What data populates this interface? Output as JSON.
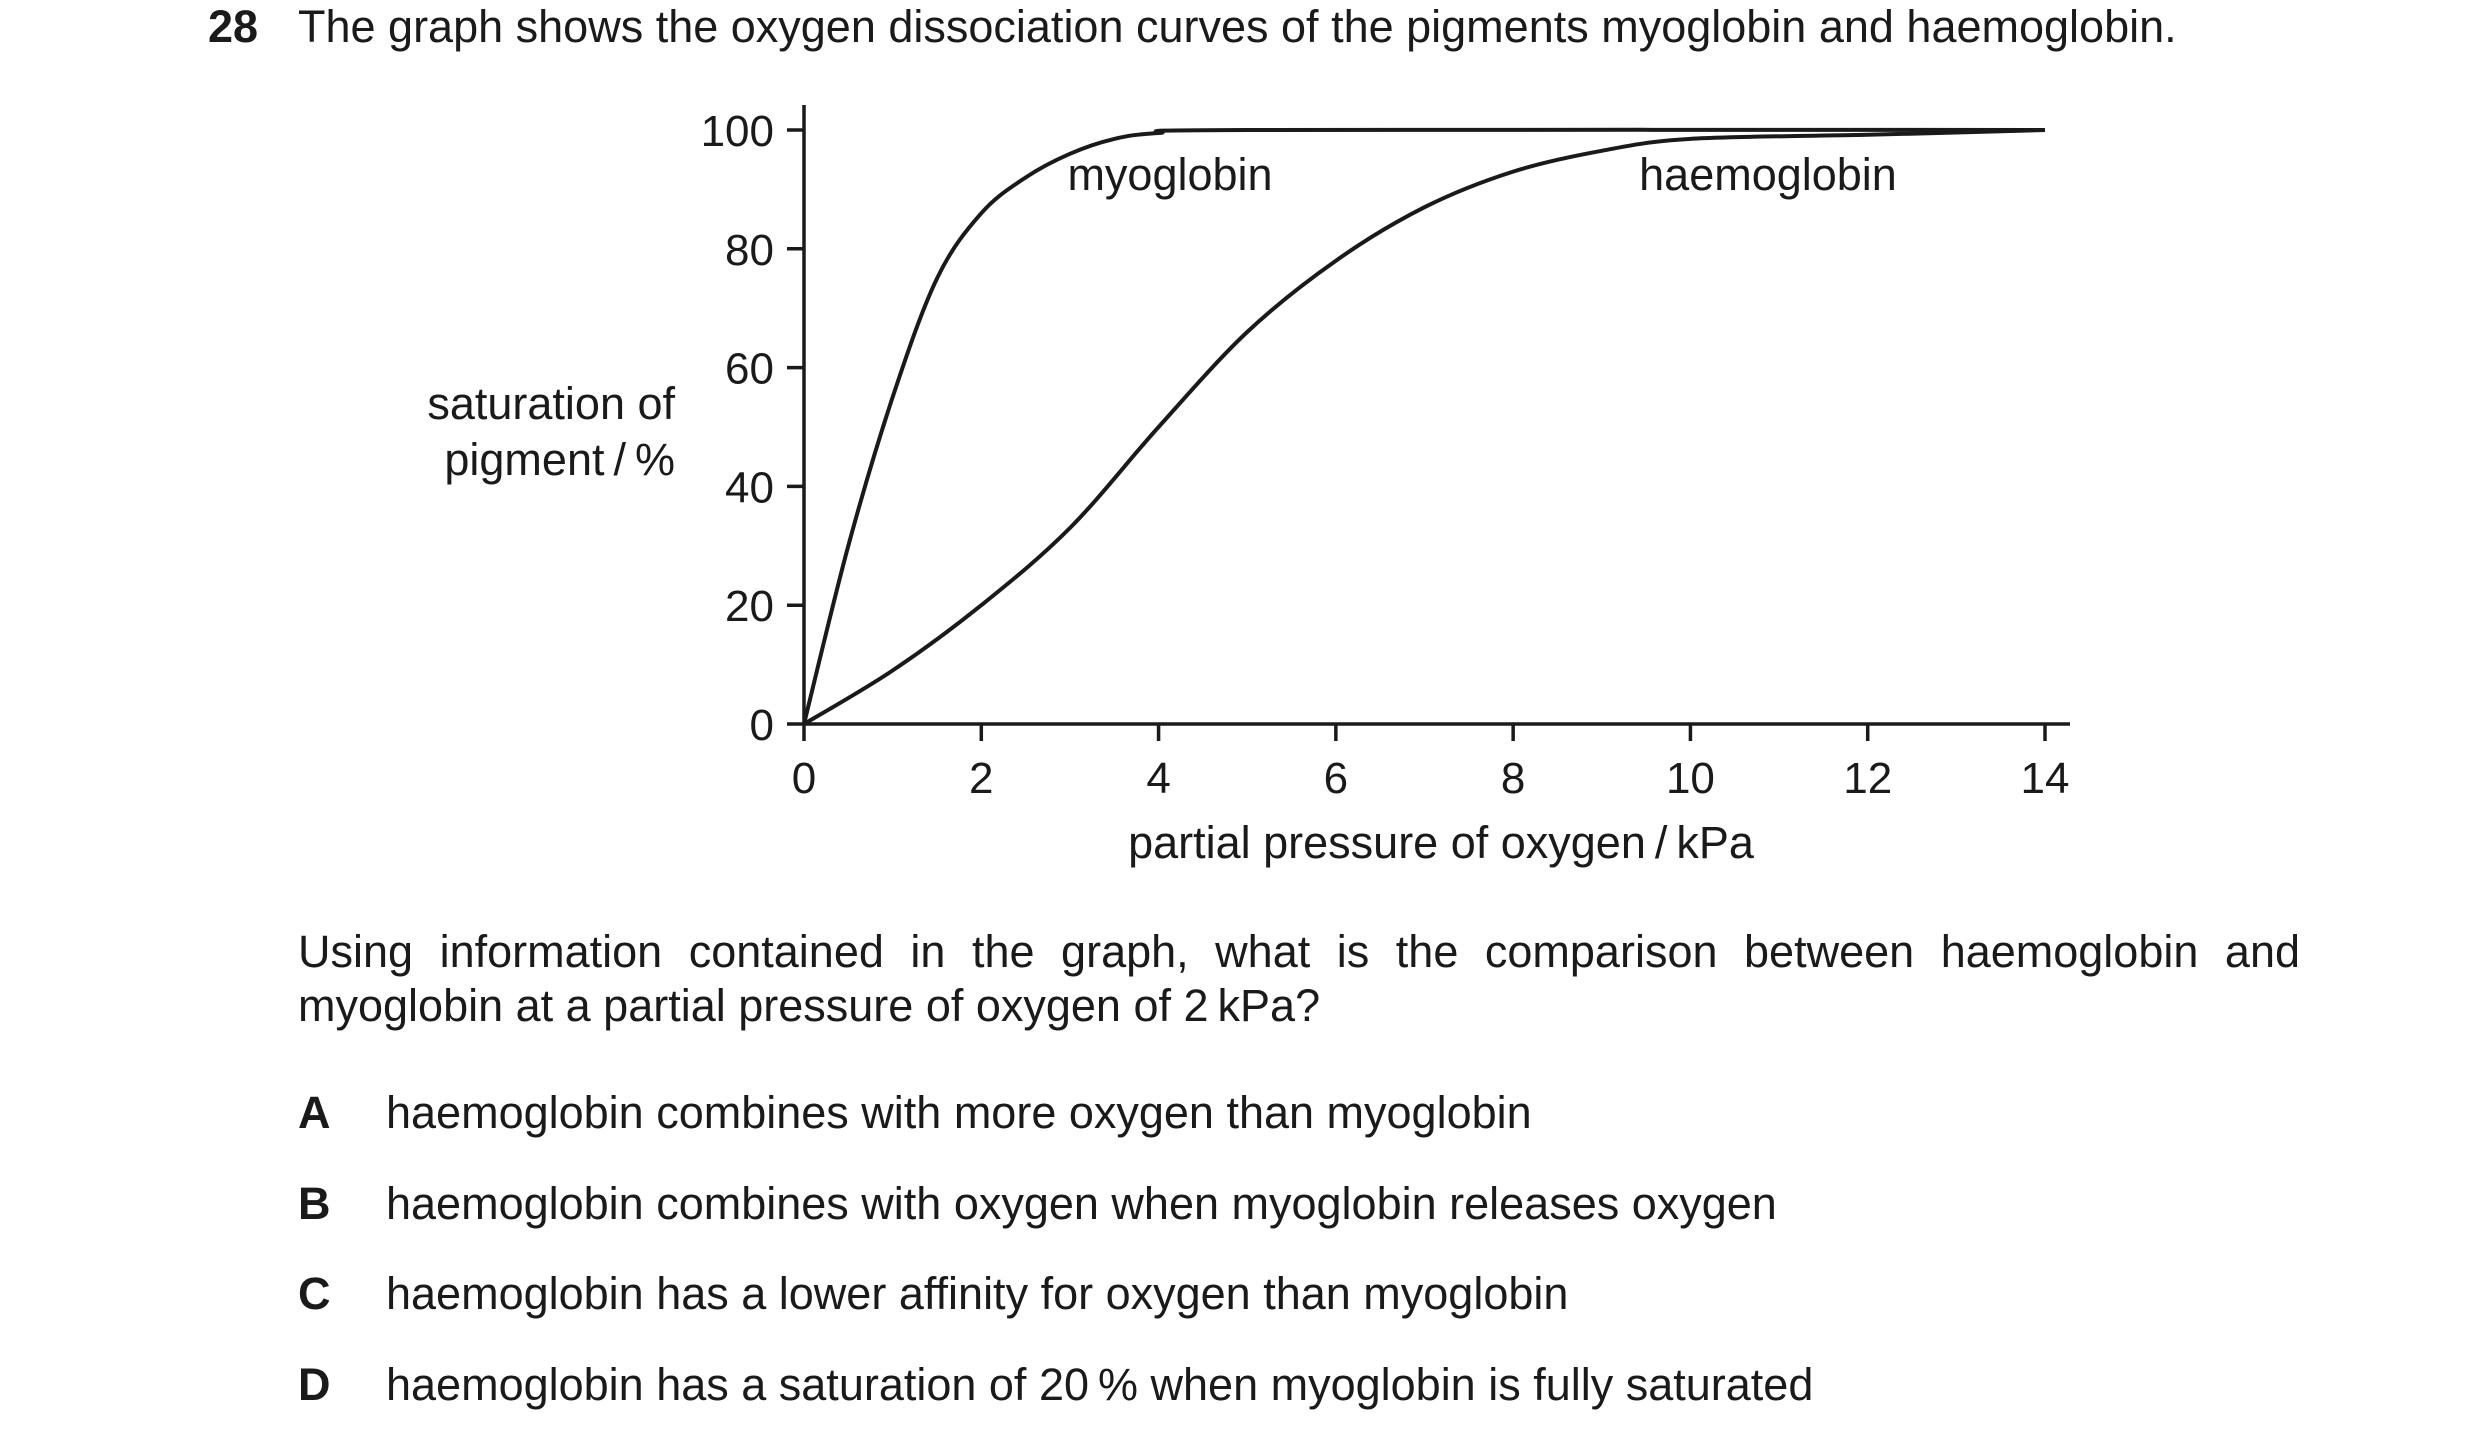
{
  "question": {
    "number": "28",
    "stem": "The graph shows the oxygen dissociation curves of the pigments myoglobin and haemoglobin.",
    "text": "Using information contained in the graph, what is the comparison between haemoglobin and myoglobin at a partial pressure of oxygen of 2 kPa?",
    "options": [
      {
        "letter": "A",
        "text": "haemoglobin combines with more oxygen than myoglobin"
      },
      {
        "letter": "B",
        "text": "haemoglobin combines with oxygen when myoglobin releases oxygen"
      },
      {
        "letter": "C",
        "text": "haemoglobin has a lower affinity for oxygen than myoglobin"
      },
      {
        "letter": "D",
        "text": "haemoglobin has a saturation of 20 % when myoglobin is fully saturated"
      }
    ]
  },
  "chart_data": {
    "type": "line",
    "xlabel": "partial pressure of oxygen / kPa",
    "ylabel_lines": [
      "saturation of",
      "pigment / %"
    ],
    "xlim": [
      0,
      14
    ],
    "ylim": [
      0,
      100
    ],
    "xticks": [
      "0",
      "2",
      "4",
      "6",
      "8",
      "10",
      "12",
      "14"
    ],
    "yticks": [
      "0",
      "20",
      "40",
      "60",
      "80",
      "100"
    ],
    "grid": false,
    "series": [
      {
        "name": "myoglobin",
        "x": [
          0,
          0.5,
          1,
          1.5,
          2,
          2.5,
          3,
          3.5,
          4,
          5,
          14
        ],
        "y": [
          0,
          30,
          55,
          75,
          86,
          92,
          96,
          98.5,
          99.5,
          100,
          100
        ]
      },
      {
        "name": "haemoglobin",
        "x": [
          0,
          1,
          2,
          3,
          4,
          5,
          6,
          7,
          8,
          9,
          10,
          12,
          14
        ],
        "y": [
          0,
          9,
          20,
          33,
          50,
          66,
          78,
          87,
          93,
          96.5,
          98.5,
          99.2,
          100
        ]
      }
    ]
  }
}
